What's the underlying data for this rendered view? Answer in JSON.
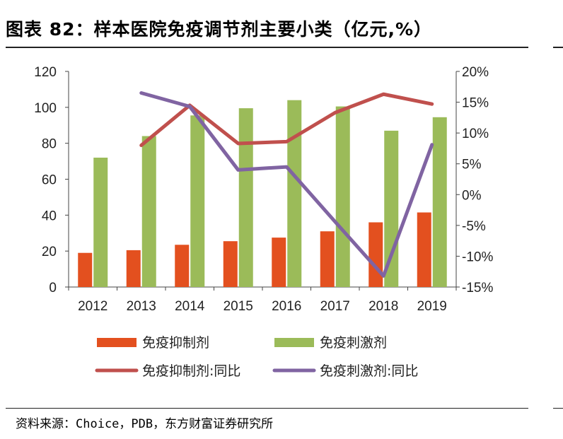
{
  "title": "图表 82：样本医院免疫调节剂主要小类（亿元,%）",
  "source": "资料来源：Choice，PDB，东方财富证券研究所",
  "chart_data": {
    "type": "bar",
    "categories": [
      "2012",
      "2013",
      "2014",
      "2015",
      "2016",
      "2017",
      "2018",
      "2019"
    ],
    "series": [
      {
        "name": "免疫抑制剂",
        "type": "bar",
        "axis": "left",
        "color": "#E3501F",
        "values": [
          19,
          20.5,
          23.5,
          25.5,
          27.5,
          31,
          36,
          41.5
        ]
      },
      {
        "name": "免疫刺激剂",
        "type": "bar",
        "axis": "left",
        "color": "#9BBB59",
        "values": [
          72,
          84,
          95.5,
          99.5,
          104,
          100.5,
          87,
          94.5
        ]
      },
      {
        "name": "免疫抑制剂:同比",
        "type": "line",
        "axis": "right",
        "color": "#C0504D",
        "values": [
          null,
          8,
          14.5,
          8.3,
          8.6,
          13.3,
          16.3,
          14.7
        ]
      },
      {
        "name": "免疫刺激剂:同比",
        "type": "line",
        "axis": "right",
        "color": "#8064A2",
        "values": [
          null,
          16.5,
          14.3,
          4.0,
          4.5,
          -4.4,
          -13.2,
          8.1
        ]
      }
    ],
    "y_left": {
      "min": 0,
      "max": 120,
      "ticks": [
        0,
        20,
        40,
        60,
        80,
        100,
        120
      ]
    },
    "y_right": {
      "min": -15,
      "max": 20,
      "ticks": [
        -15,
        -10,
        -5,
        0,
        5,
        10,
        15,
        20
      ],
      "tick_labels": [
        "-15%",
        "-10%",
        "-5%",
        "0%",
        "5%",
        "10%",
        "15%",
        "20%"
      ]
    },
    "grid": false,
    "legend_position": "bottom"
  }
}
